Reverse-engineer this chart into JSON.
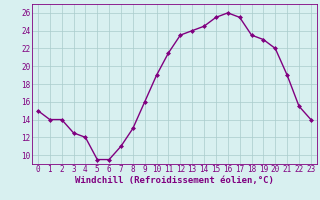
{
  "x": [
    0,
    1,
    2,
    3,
    4,
    5,
    6,
    7,
    8,
    9,
    10,
    11,
    12,
    13,
    14,
    15,
    16,
    17,
    18,
    19,
    20,
    21,
    22,
    23
  ],
  "y": [
    15.0,
    14.0,
    14.0,
    12.5,
    12.0,
    9.5,
    9.5,
    11.0,
    13.0,
    16.0,
    19.0,
    21.5,
    23.5,
    24.0,
    24.5,
    25.5,
    26.0,
    25.5,
    23.5,
    23.0,
    22.0,
    19.0,
    15.5,
    14.0
  ],
  "line_color": "#800080",
  "marker": "D",
  "marker_size": 2.0,
  "bg_color": "#d8f0f0",
  "grid_color": "#aacccc",
  "xlabel": "Windchill (Refroidissement éolien,°C)",
  "xlabel_fontsize": 6.5,
  "ylabel_ticks": [
    10,
    12,
    14,
    16,
    18,
    20,
    22,
    24,
    26
  ],
  "ylim": [
    9.0,
    27.0
  ],
  "xlim": [
    -0.5,
    23.5
  ],
  "tick_fontsize": 5.5,
  "line_width": 1.0
}
